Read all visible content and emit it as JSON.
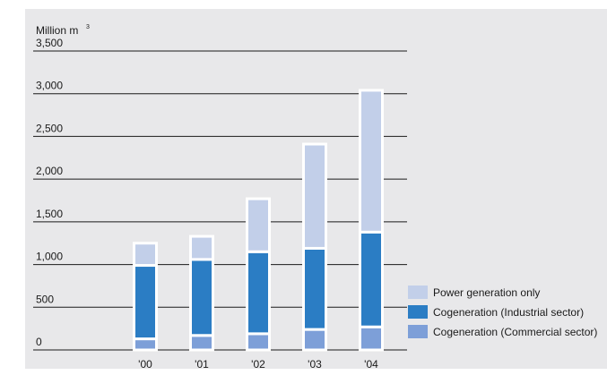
{
  "caption_fragment": "",
  "chart_data": {
    "type": "bar",
    "stacked": true,
    "categories": [
      "'00",
      "'01",
      "'02",
      "'03",
      "'04"
    ],
    "ylabel": "Million m",
    "ylabel_superscript": "3",
    "ylim": [
      0,
      3500
    ],
    "yticks": [
      0,
      500,
      1000,
      1500,
      2000,
      2500,
      3000,
      3500
    ],
    "ytick_labels": [
      "0",
      "500",
      "1,000",
      "1,500",
      "2,000",
      "2,500",
      "3,000",
      "3,500"
    ],
    "grid": true,
    "legend_position": "bottom-right",
    "series": [
      {
        "name": "Cogeneration (Commercial sector)",
        "color": "#7d9fd8",
        "values": [
          130,
          170,
          190,
          240,
          270
        ]
      },
      {
        "name": "Cogeneration (Industrial sector)",
        "color": "#2b7dc4",
        "values": [
          860,
          890,
          960,
          950,
          1110
        ]
      },
      {
        "name": "Power generation only",
        "color": "#c2cfe9",
        "values": [
          260,
          270,
          620,
          1220,
          1660
        ]
      }
    ]
  }
}
